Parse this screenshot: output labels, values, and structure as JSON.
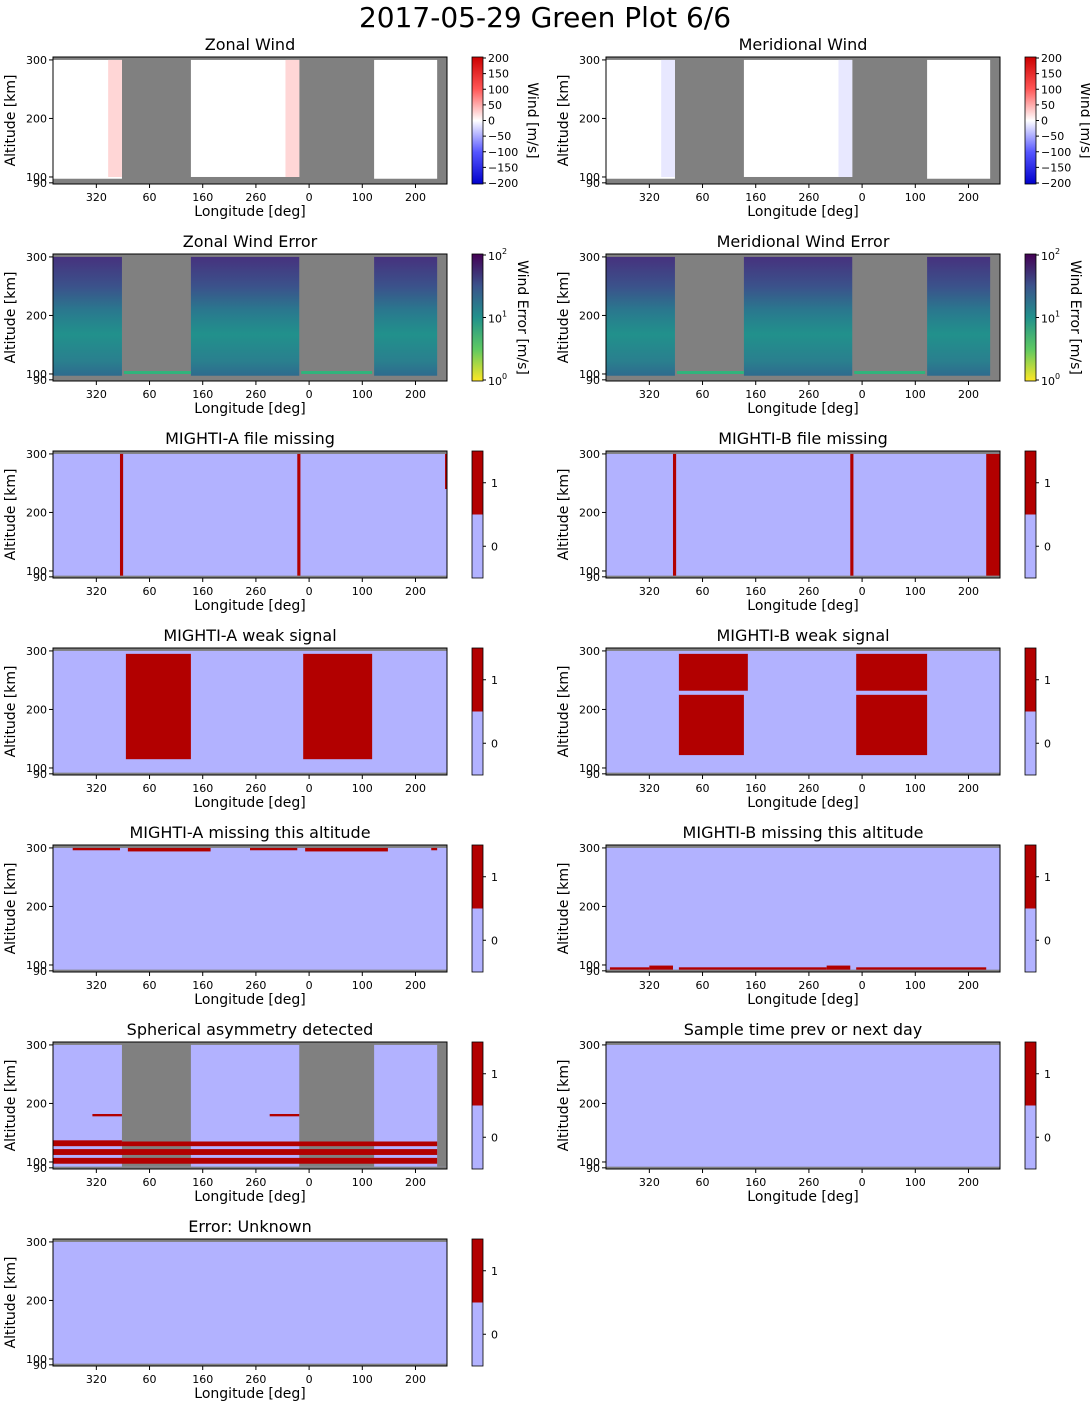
{
  "figure": {
    "title": "2017-05-29 Green Plot 6/6"
  },
  "colors": {
    "gray": "#808080",
    "flag_zero": "#b2b2ff",
    "flag_one": "#b20000",
    "wind_white": "#ffffff",
    "wind_red_tint": "#ffd6d6",
    "wind_blue_tint": "#e8e8ff",
    "wind_cmap": [
      "#0000cc",
      "#3333ff",
      "#ffffff",
      "#ff3333",
      "#cc0000"
    ],
    "viridis": [
      "#fde725",
      "#5ec962",
      "#21918c",
      "#3b528b",
      "#440154"
    ]
  },
  "chart_data": [
    {
      "type": "heatmap",
      "id": "zonal-wind",
      "panel": 0,
      "title": "Zonal Wind",
      "xlabel": "Longitude [deg]",
      "ylabel": "Altitude [km]",
      "xticks": [
        "320",
        "60",
        "160",
        "260",
        "0",
        "100",
        "200"
      ],
      "yticks": [
        "90",
        "100",
        "200",
        "300"
      ],
      "ylim": [
        88,
        305
      ],
      "colorbar": {
        "kind": "wind",
        "label": "Wind [m/s]",
        "ticks": [
          "200",
          "150",
          "100",
          "50",
          "0",
          "−50",
          "−100",
          "−150",
          "−200"
        ]
      },
      "data_blocks": [
        {
          "x0": 0.0,
          "x1": 0.175,
          "y0": 97,
          "y1": 300,
          "fill": "white"
        },
        {
          "x0": 0.14,
          "x1": 0.175,
          "y0": 100,
          "y1": 300,
          "fill": "red_tint"
        },
        {
          "x0": 0.35,
          "x1": 0.625,
          "y0": 100,
          "y1": 300,
          "fill": "white"
        },
        {
          "x0": 0.59,
          "x1": 0.625,
          "y0": 100,
          "y1": 300,
          "fill": "red_tint"
        },
        {
          "x0": 0.815,
          "x1": 0.975,
          "y0": 97,
          "y1": 300,
          "fill": "white"
        }
      ]
    },
    {
      "type": "heatmap",
      "id": "meridional-wind",
      "panel": 1,
      "title": "Meridional Wind",
      "xlabel": "Longitude [deg]",
      "ylabel": "Altitude [km]",
      "xticks": [
        "320",
        "60",
        "160",
        "260",
        "0",
        "100",
        "200"
      ],
      "yticks": [
        "90",
        "100",
        "200",
        "300"
      ],
      "ylim": [
        88,
        305
      ],
      "colorbar": {
        "kind": "wind",
        "label": "Wind [m/s]",
        "ticks": [
          "200",
          "150",
          "100",
          "50",
          "0",
          "−50",
          "−100",
          "−150",
          "−200"
        ]
      },
      "data_blocks": [
        {
          "x0": 0.0,
          "x1": 0.175,
          "y0": 97,
          "y1": 300,
          "fill": "white"
        },
        {
          "x0": 0.14,
          "x1": 0.175,
          "y0": 100,
          "y1": 300,
          "fill": "blue_tint"
        },
        {
          "x0": 0.35,
          "x1": 0.625,
          "y0": 100,
          "y1": 300,
          "fill": "white"
        },
        {
          "x0": 0.59,
          "x1": 0.625,
          "y0": 100,
          "y1": 300,
          "fill": "blue_tint"
        },
        {
          "x0": 0.815,
          "x1": 0.975,
          "y0": 97,
          "y1": 300,
          "fill": "white"
        }
      ]
    },
    {
      "type": "heatmap",
      "id": "zonal-wind-error",
      "panel": 2,
      "title": "Zonal Wind Error",
      "xlabel": "Longitude [deg]",
      "ylabel": "Altitude [km]",
      "xticks": [
        "320",
        "60",
        "160",
        "260",
        "0",
        "100",
        "200"
      ],
      "yticks": [
        "90",
        "100",
        "200",
        "300"
      ],
      "ylim": [
        88,
        305
      ],
      "colorbar": {
        "kind": "error",
        "label": "Wind Error [m/s]",
        "ticks": [
          "10",
          "10",
          "10"
        ],
        "tick_exponents": [
          "2",
          "1",
          "0"
        ],
        "scale": "log",
        "range": [
          1,
          100
        ]
      },
      "data_blocks": [
        {
          "x0": 0.0,
          "x1": 0.175,
          "y0": 97,
          "y1": 300,
          "fill": "viridis"
        },
        {
          "x0": 0.35,
          "x1": 0.625,
          "y0": 97,
          "y1": 300,
          "fill": "viridis"
        },
        {
          "x0": 0.815,
          "x1": 0.975,
          "y0": 97,
          "y1": 300,
          "fill": "viridis"
        },
        {
          "x0": 0.18,
          "x1": 0.35,
          "y0": 100,
          "y1": 105,
          "fill": "green_band"
        },
        {
          "x0": 0.63,
          "x1": 0.81,
          "y0": 100,
          "y1": 105,
          "fill": "green_band"
        }
      ]
    },
    {
      "type": "heatmap",
      "id": "meridional-wind-error",
      "panel": 3,
      "title": "Meridional Wind Error",
      "xlabel": "Longitude [deg]",
      "ylabel": "Altitude [km]",
      "xticks": [
        "320",
        "60",
        "160",
        "260",
        "0",
        "100",
        "200"
      ],
      "yticks": [
        "90",
        "100",
        "200",
        "300"
      ],
      "ylim": [
        88,
        305
      ],
      "colorbar": {
        "kind": "error",
        "label": "Wind Error [m/s]",
        "ticks": [
          "10",
          "10",
          "10"
        ],
        "tick_exponents": [
          "2",
          "1",
          "0"
        ],
        "scale": "log",
        "range": [
          1,
          100
        ]
      },
      "data_blocks": [
        {
          "x0": 0.0,
          "x1": 0.175,
          "y0": 97,
          "y1": 300,
          "fill": "viridis"
        },
        {
          "x0": 0.35,
          "x1": 0.625,
          "y0": 97,
          "y1": 300,
          "fill": "viridis"
        },
        {
          "x0": 0.815,
          "x1": 0.975,
          "y0": 97,
          "y1": 300,
          "fill": "viridis"
        },
        {
          "x0": 0.18,
          "x1": 0.35,
          "y0": 100,
          "y1": 105,
          "fill": "green_band"
        },
        {
          "x0": 0.63,
          "x1": 0.81,
          "y0": 100,
          "y1": 105,
          "fill": "green_band"
        }
      ]
    },
    {
      "type": "heatmap",
      "id": "mighti-a-file-missing",
      "panel": 4,
      "title": "MIGHTI-A file missing",
      "xlabel": "Longitude [deg]",
      "ylabel": "Altitude [km]",
      "xticks": [
        "320",
        "60",
        "160",
        "260",
        "0",
        "100",
        "200"
      ],
      "yticks": [
        "90",
        "100",
        "200",
        "300"
      ],
      "ylim": [
        88,
        305
      ],
      "colorbar": {
        "kind": "flag",
        "ticks": [
          "1",
          "0"
        ]
      },
      "flag_one_regions": [
        {
          "x0": 0.17,
          "x1": 0.178,
          "y0": 92,
          "y1": 300
        },
        {
          "x0": 0.62,
          "x1": 0.628,
          "y0": 92,
          "y1": 300
        },
        {
          "x0": 0.995,
          "x1": 1.0,
          "y0": 240,
          "y1": 300
        }
      ]
    },
    {
      "type": "heatmap",
      "id": "mighti-b-file-missing",
      "panel": 5,
      "title": "MIGHTI-B file missing",
      "xlabel": "Longitude [deg]",
      "ylabel": "Altitude [km]",
      "xticks": [
        "320",
        "60",
        "160",
        "260",
        "0",
        "100",
        "200"
      ],
      "yticks": [
        "90",
        "100",
        "200",
        "300"
      ],
      "ylim": [
        88,
        305
      ],
      "colorbar": {
        "kind": "flag",
        "ticks": [
          "1",
          "0"
        ]
      },
      "flag_one_regions": [
        {
          "x0": 0.17,
          "x1": 0.178,
          "y0": 92,
          "y1": 300
        },
        {
          "x0": 0.62,
          "x1": 0.628,
          "y0": 92,
          "y1": 300
        },
        {
          "x0": 0.965,
          "x1": 1.0,
          "y0": 92,
          "y1": 300
        }
      ]
    },
    {
      "type": "heatmap",
      "id": "mighti-a-weak-signal",
      "panel": 6,
      "title": "MIGHTI-A weak signal",
      "xlabel": "Longitude [deg]",
      "ylabel": "Altitude [km]",
      "xticks": [
        "320",
        "60",
        "160",
        "260",
        "0",
        "100",
        "200"
      ],
      "yticks": [
        "90",
        "100",
        "200",
        "300"
      ],
      "ylim": [
        88,
        305
      ],
      "colorbar": {
        "kind": "flag",
        "ticks": [
          "1",
          "0"
        ]
      },
      "flag_one_regions": [
        {
          "x0": 0.185,
          "x1": 0.35,
          "y0": 115,
          "y1": 295
        },
        {
          "x0": 0.635,
          "x1": 0.81,
          "y0": 115,
          "y1": 295
        }
      ]
    },
    {
      "type": "heatmap",
      "id": "mighti-b-weak-signal",
      "panel": 7,
      "title": "MIGHTI-B weak signal",
      "xlabel": "Longitude [deg]",
      "ylabel": "Altitude [km]",
      "xticks": [
        "320",
        "60",
        "160",
        "260",
        "0",
        "100",
        "200"
      ],
      "yticks": [
        "90",
        "100",
        "200",
        "300"
      ],
      "ylim": [
        88,
        305
      ],
      "colorbar": {
        "kind": "flag",
        "ticks": [
          "1",
          "0"
        ]
      },
      "flag_one_regions": [
        {
          "x0": 0.185,
          "x1": 0.36,
          "y0": 232,
          "y1": 295
        },
        {
          "x0": 0.185,
          "x1": 0.35,
          "y0": 122,
          "y1": 225
        },
        {
          "x0": 0.635,
          "x1": 0.815,
          "y0": 232,
          "y1": 295
        },
        {
          "x0": 0.635,
          "x1": 0.815,
          "y0": 122,
          "y1": 225
        }
      ]
    },
    {
      "type": "heatmap",
      "id": "mighti-a-missing-altitude",
      "panel": 8,
      "title": "MIGHTI-A missing this altitude",
      "xlabel": "Longitude [deg]",
      "ylabel": "Altitude [km]",
      "xticks": [
        "320",
        "60",
        "160",
        "260",
        "0",
        "100",
        "200"
      ],
      "yticks": [
        "90",
        "100",
        "200",
        "300"
      ],
      "ylim": [
        88,
        305
      ],
      "colorbar": {
        "kind": "flag",
        "ticks": [
          "1",
          "0"
        ]
      },
      "flag_one_regions": [
        {
          "x0": 0.05,
          "x1": 0.17,
          "y0": 296,
          "y1": 300
        },
        {
          "x0": 0.19,
          "x1": 0.4,
          "y0": 294,
          "y1": 300
        },
        {
          "x0": 0.5,
          "x1": 0.62,
          "y0": 296,
          "y1": 300
        },
        {
          "x0": 0.64,
          "x1": 0.85,
          "y0": 294,
          "y1": 300
        },
        {
          "x0": 0.96,
          "x1": 0.975,
          "y0": 296,
          "y1": 300
        }
      ]
    },
    {
      "type": "heatmap",
      "id": "mighti-b-missing-altitude",
      "panel": 9,
      "title": "MIGHTI-B missing this altitude",
      "xlabel": "Longitude [deg]",
      "ylabel": "Altitude [km]",
      "xticks": [
        "320",
        "60",
        "160",
        "260",
        "0",
        "100",
        "200"
      ],
      "yticks": [
        "90",
        "100",
        "200",
        "300"
      ],
      "ylim": [
        88,
        305
      ],
      "colorbar": {
        "kind": "flag",
        "ticks": [
          "1",
          "0"
        ]
      },
      "flag_one_regions": [
        {
          "x0": 0.01,
          "x1": 0.11,
          "y0": 92,
          "y1": 96
        },
        {
          "x0": 0.11,
          "x1": 0.17,
          "y0": 92,
          "y1": 99
        },
        {
          "x0": 0.185,
          "x1": 0.56,
          "y0": 92,
          "y1": 96
        },
        {
          "x0": 0.56,
          "x1": 0.62,
          "y0": 92,
          "y1": 99
        },
        {
          "x0": 0.635,
          "x1": 0.965,
          "y0": 92,
          "y1": 96
        }
      ]
    },
    {
      "type": "heatmap",
      "id": "spherical-asymmetry",
      "panel": 10,
      "title": "Spherical asymmetry detected",
      "xlabel": "Longitude [deg]",
      "ylabel": "Altitude [km]",
      "xticks": [
        "320",
        "60",
        "160",
        "260",
        "0",
        "100",
        "200"
      ],
      "yticks": [
        "90",
        "100",
        "200",
        "300"
      ],
      "ylim": [
        88,
        305
      ],
      "colorbar": {
        "kind": "flag",
        "ticks": [
          "1",
          "0"
        ]
      },
      "gray_regions": [
        {
          "x0": 0.175,
          "x1": 0.35,
          "y0": 92,
          "y1": 305
        },
        {
          "x0": 0.625,
          "x1": 0.815,
          "y0": 92,
          "y1": 305
        },
        {
          "x0": 0.975,
          "x1": 1.0,
          "y0": 92,
          "y1": 305
        }
      ],
      "flag_one_regions": [
        {
          "x0": 0.0,
          "x1": 0.175,
          "y0": 127,
          "y1": 137
        },
        {
          "x0": 0.175,
          "x1": 0.975,
          "y0": 127,
          "y1": 135
        },
        {
          "x0": 0.0,
          "x1": 0.975,
          "y0": 112,
          "y1": 122
        },
        {
          "x0": 0.0,
          "x1": 0.975,
          "y0": 97,
          "y1": 107
        },
        {
          "x0": 0.1,
          "x1": 0.175,
          "y0": 178,
          "y1": 182
        },
        {
          "x0": 0.55,
          "x1": 0.625,
          "y0": 178,
          "y1": 182
        }
      ]
    },
    {
      "type": "heatmap",
      "id": "sample-time",
      "panel": 11,
      "title": "Sample time prev or next day",
      "xlabel": "Longitude [deg]",
      "ylabel": "Altitude [km]",
      "xticks": [
        "320",
        "60",
        "160",
        "260",
        "0",
        "100",
        "200"
      ],
      "yticks": [
        "90",
        "100",
        "200",
        "300"
      ],
      "ylim": [
        88,
        305
      ],
      "colorbar": {
        "kind": "flag",
        "ticks": [
          "1",
          "0"
        ]
      },
      "flag_one_regions": []
    },
    {
      "type": "heatmap",
      "id": "error-unknown",
      "panel": 12,
      "title": "Error: Unknown",
      "xlabel": "Longitude [deg]",
      "ylabel": "Altitude [km]",
      "xticks": [
        "320",
        "60",
        "160",
        "260",
        "0",
        "100",
        "200"
      ],
      "yticks": [
        "90",
        "100",
        "200",
        "300"
      ],
      "ylim": [
        88,
        305
      ],
      "colorbar": {
        "kind": "flag",
        "ticks": [
          "1",
          "0"
        ]
      },
      "flag_one_regions": []
    }
  ]
}
